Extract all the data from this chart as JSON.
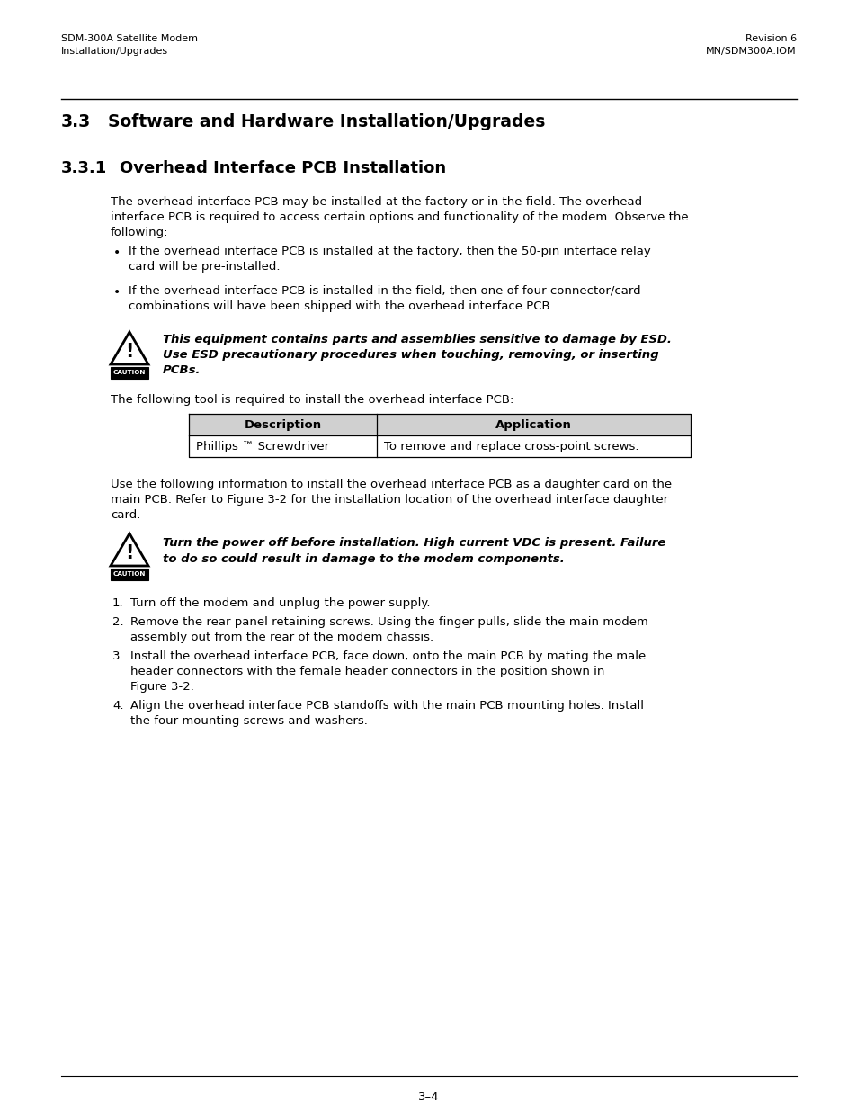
{
  "page_bg": "#ffffff",
  "header_left_line1": "SDM-300A Satellite Modem",
  "header_left_line2": "Installation/Upgrades",
  "header_right_line1": "Revision 6",
  "header_right_line2": "MN/SDM300A.IOM",
  "section_title_num": "3.3",
  "section_title_text": "Software and Hardware Installation/Upgrades",
  "subsection_title_num": "3.3.1",
  "subsection_title_text": "Overhead Interface PCB Installation",
  "intro_text": "The overhead interface PCB may be installed at the factory or in the field. The overhead\ninterface PCB is required to access certain options and functionality of the modem. Observe the\nfollowing:",
  "bullet1": "If the overhead interface PCB is installed at the factory, then the 50-pin interface relay\ncard will be pre-installed.",
  "bullet2": "If the overhead interface PCB is installed in the field, then one of four connector/card\ncombinations will have been shipped with the overhead interface PCB.",
  "caution1_line1": "This equipment contains parts and assemblies sensitive to damage by ESD.",
  "caution1_line2": "Use ESD precautionary procedures when touching, removing, or inserting",
  "caution1_line3": "PCBs.",
  "tool_intro": "The following tool is required to install the overhead interface PCB:",
  "table_header1": "Description",
  "table_header2": "Application",
  "table_row1_col1": "Phillips ™ Screwdriver",
  "table_row1_col2": "To remove and replace cross-point screws.",
  "use_line1": "Use the following information to install the overhead interface PCB as a daughter card on the",
  "use_line2": "main PCB. Refer to Figure 3-2 for the installation location of the overhead interface daughter",
  "use_line3": "card.",
  "caution2_line1": "Turn the power off before installation. High current VDC is present. Failure",
  "caution2_line2": "to do so could result in damage to the modem components.",
  "step1": "Turn off the modem and unplug the power supply.",
  "step2a": "Remove the rear panel retaining screws. Using the finger pulls, slide the main modem",
  "step2b": "assembly out from the rear of the modem chassis.",
  "step3a": "Install the overhead interface PCB, face down, onto the main PCB by mating the male",
  "step3b": "header connectors with the female header connectors in the position shown in",
  "step3c": "Figure 3-2.",
  "step4a": "Align the overhead interface PCB standoffs with the main PCB mounting holes. Install",
  "step4b": "the four mounting screws and washers.",
  "footer_text": "3–4",
  "text_color": "#000000",
  "table_header_bg": "#d0d0d0",
  "table_border": "#000000",
  "section_line_color": "#000000"
}
